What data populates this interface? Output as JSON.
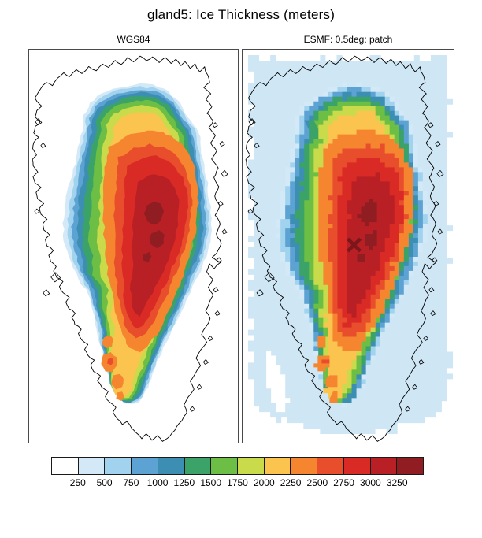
{
  "title": "gland5: Ice Thickness (meters)",
  "panels": [
    {
      "label": "WGS84"
    },
    {
      "label": "ESMF: 0.5deg: patch"
    }
  ],
  "chart_data": {
    "type": "heatmap",
    "title": "gland5: Ice Thickness (meters)",
    "field": "Ice Thickness",
    "units": "meters",
    "panels": [
      {
        "name": "WGS84",
        "description": "Greenland ice thickness on the native gland5 grid: smooth filled contours over a white background with a black coastline outline; maximum thickness (dark red, ~3000-3250 m) in the north-central interior dome, thinning through orange, yellow, green and blue bands toward the ice margin; a secondary thinner southern dome reaches only orange (~2250-2500 m)."
      },
      {
        "name": "ESMF: 0.5deg: patch",
        "description": "Same field regridded to a 0.5 degree grid with the ESMF patch method: blocky 0.5-deg cells with jagged band edges, light-blue low values (<250 m) covering the surrounding ocean, white sawtooth border where the grid ends, black coastline overlaid, dark x-shaped cluster of deepest-red cells near the dome center."
      }
    ],
    "colorbar": {
      "orientation": "horizontal",
      "n_colors": 14,
      "tick_labels": [
        "250",
        "500",
        "750",
        "1000",
        "1250",
        "1500",
        "1750",
        "2000",
        "2250",
        "2500",
        "2750",
        "3000",
        "3250"
      ],
      "levels_m": [
        250,
        500,
        750,
        1000,
        1250,
        1500,
        1750,
        2000,
        2250,
        2500,
        2750,
        3000,
        3250
      ],
      "colors": [
        "#FFFFFF",
        "#D3E9F7",
        "#A1D3EE",
        "#5CA2D2",
        "#3C8FB2",
        "#3CA368",
        "#6CBE44",
        "#C9DB4B",
        "#FBC44F",
        "#F5862F",
        "#E84E2C",
        "#DA2A25",
        "#B92025",
        "#8F1D21"
      ]
    },
    "value_range_m": [
      0,
      3500
    ],
    "map_colors": {
      "coastline": "#000000",
      "left_background": "#FFFFFF",
      "right_ocean_background": "#CFE7F5",
      "panel_border": "#4A4A4A"
    }
  }
}
